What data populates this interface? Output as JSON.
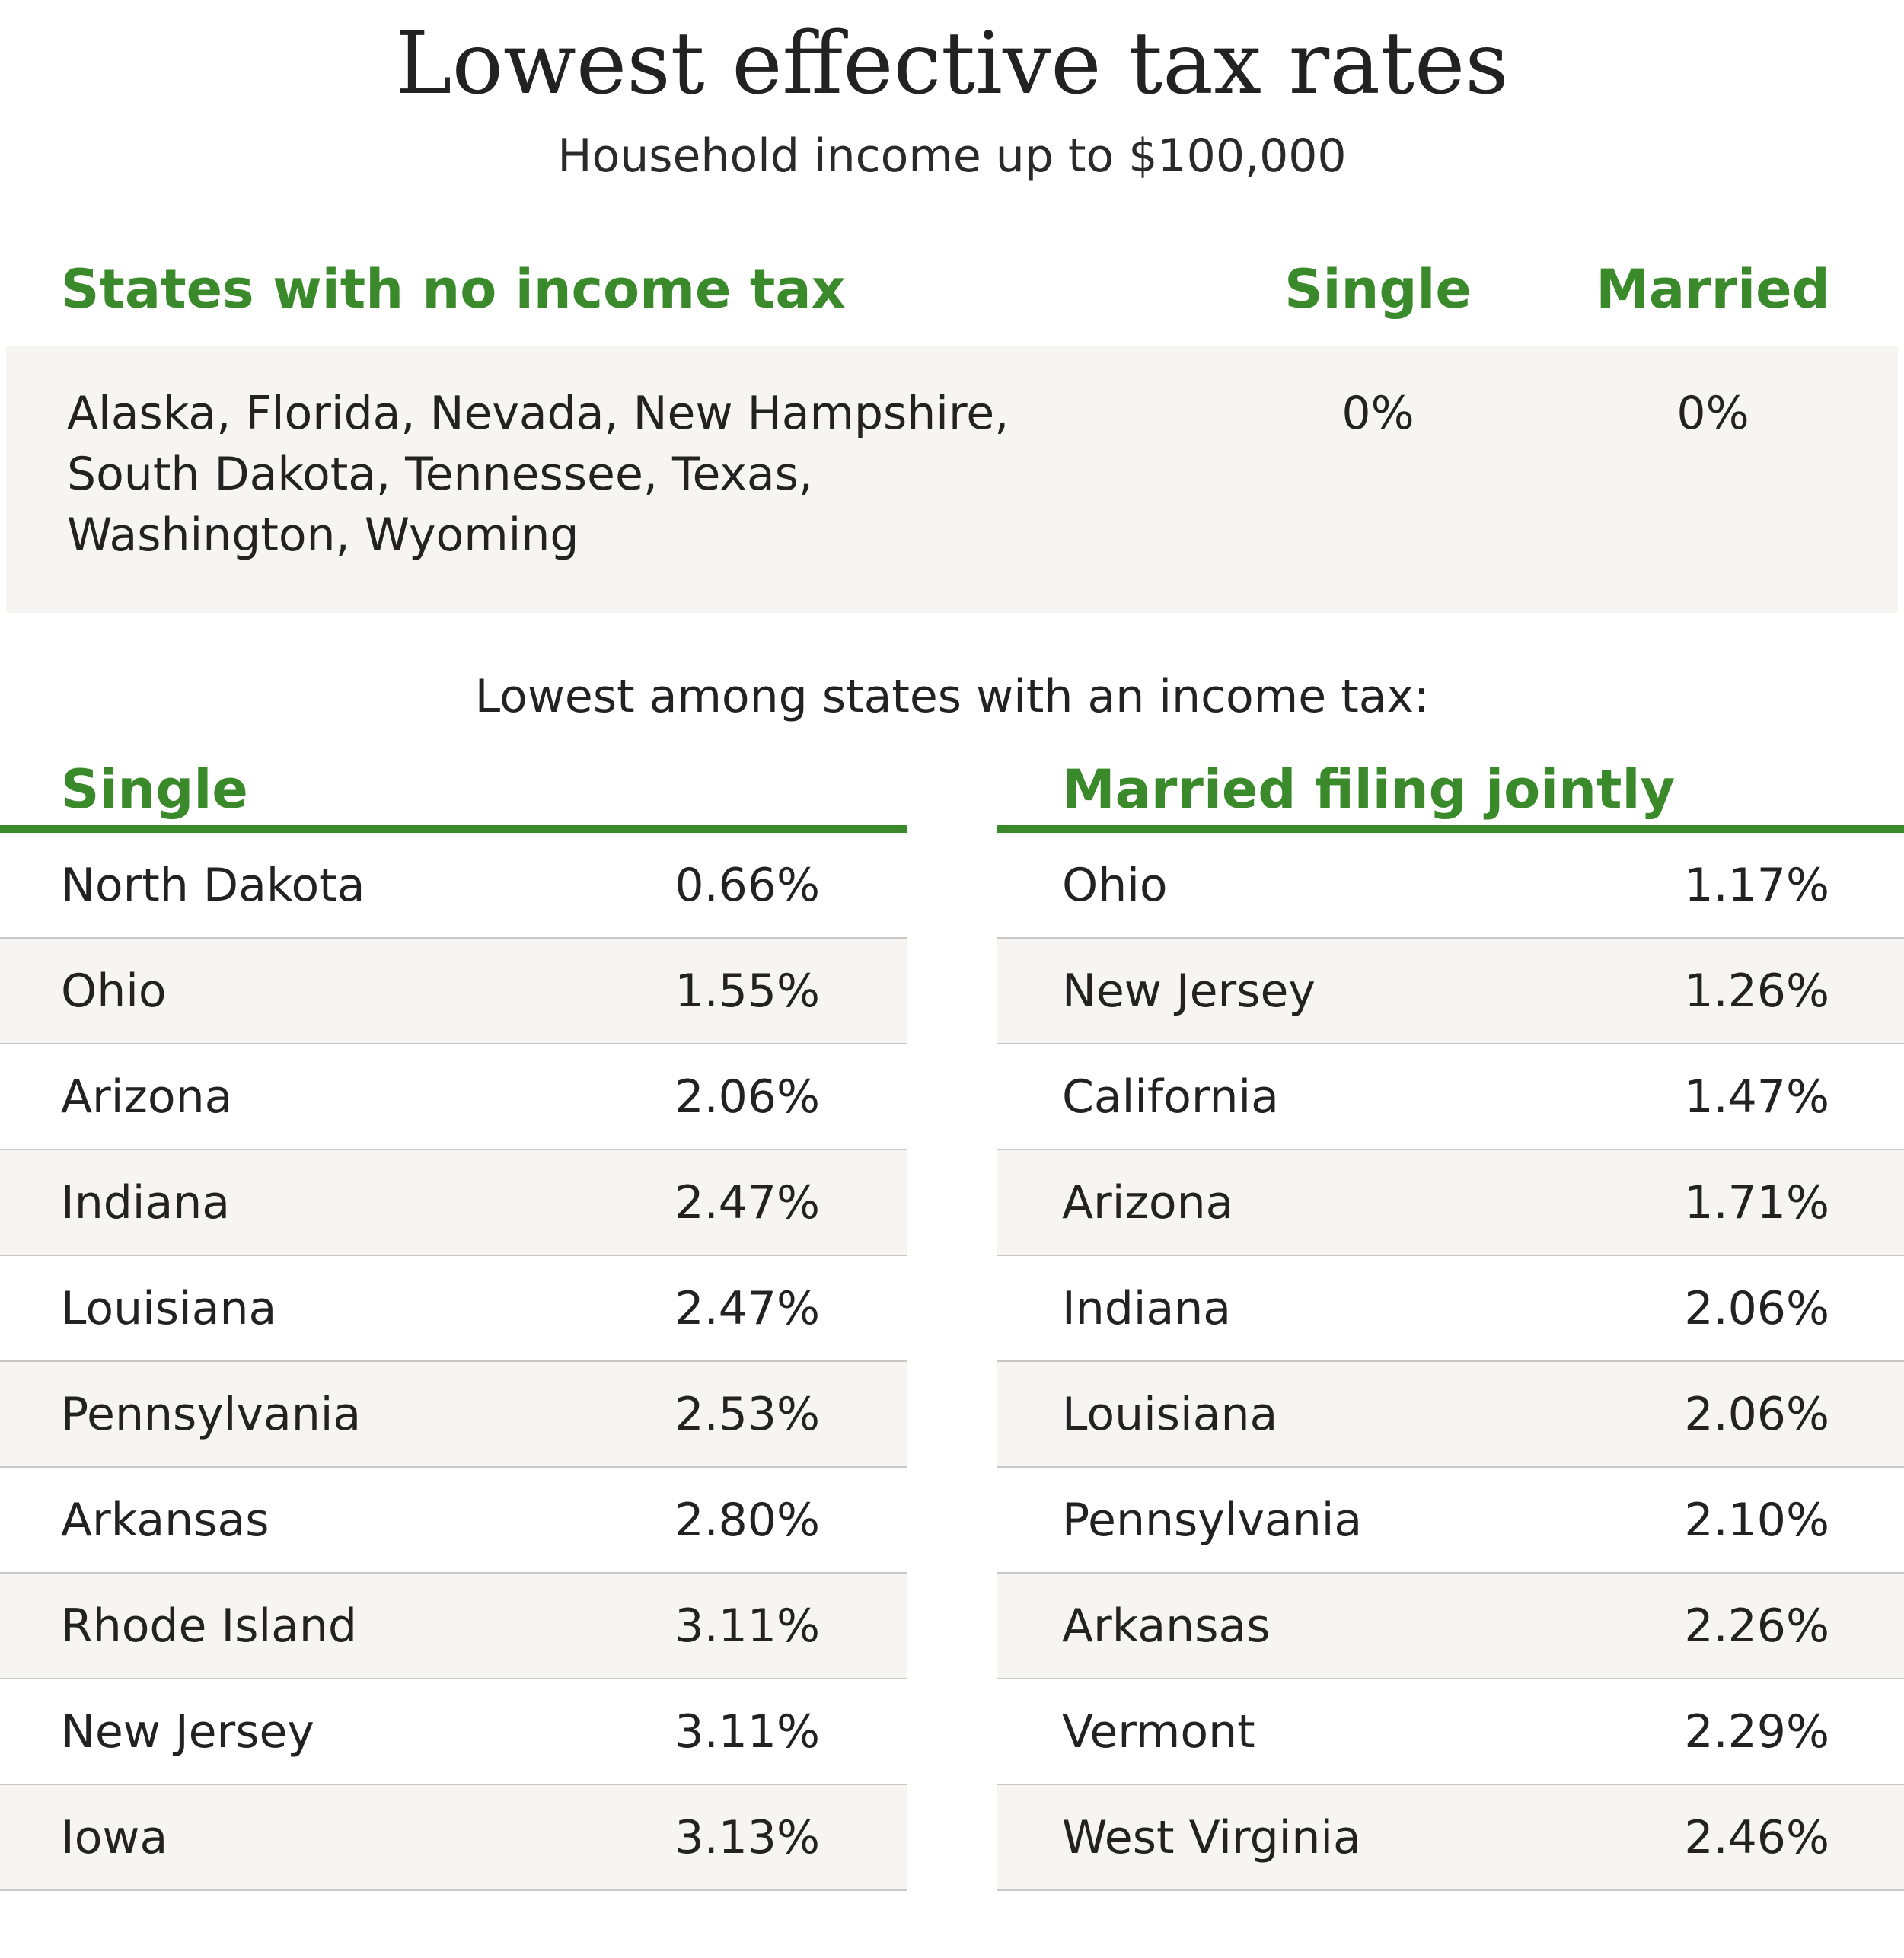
{
  "title": "Lowest effective tax rates",
  "subtitle": "Household income up to $100,000",
  "no_income_tax": {
    "heading": "States with no income tax",
    "single_label": "Single",
    "married_label": "Married",
    "states_lines": [
      "Alaska, Florida, Nevada, New Hampshire,",
      "South Dakota, Tennessee, Texas,",
      "Washington, Wyoming"
    ],
    "single_rate": "0%",
    "married_rate": "0%"
  },
  "lowest_heading": "Lowest among states with an income tax:",
  "single_table": {
    "heading": "Single",
    "rows": [
      {
        "state": "North Dakota",
        "rate": "0.66%"
      },
      {
        "state": "Ohio",
        "rate": "1.55%"
      },
      {
        "state": "Arizona",
        "rate": "2.06%"
      },
      {
        "state": "Indiana",
        "rate": "2.47%"
      },
      {
        "state": "Louisiana",
        "rate": "2.47%"
      },
      {
        "state": "Pennsylvania",
        "rate": "2.53%"
      },
      {
        "state": "Arkansas",
        "rate": "2.80%"
      },
      {
        "state": "Rhode Island",
        "rate": "3.11%"
      },
      {
        "state": "New Jersey",
        "rate": "3.11%"
      },
      {
        "state": "Iowa",
        "rate": "3.13%"
      }
    ]
  },
  "married_table": {
    "heading": "Married filing jointly",
    "rows": [
      {
        "state": "Ohio",
        "rate": "1.17%"
      },
      {
        "state": "New Jersey",
        "rate": "1.26%"
      },
      {
        "state": "California",
        "rate": "1.47%"
      },
      {
        "state": "Arizona",
        "rate": "1.71%"
      },
      {
        "state": "Indiana",
        "rate": "2.06%"
      },
      {
        "state": "Louisiana",
        "rate": "2.06%"
      },
      {
        "state": "Pennsylvania",
        "rate": "2.10%"
      },
      {
        "state": "Arkansas",
        "rate": "2.26%"
      },
      {
        "state": "Vermont",
        "rate": "2.29%"
      },
      {
        "state": "West Virginia",
        "rate": "2.46%"
      }
    ]
  },
  "colors": {
    "accent_green": "#3a8a2c",
    "shade": "#f6f5f3",
    "divider": "#c8c8c8"
  }
}
